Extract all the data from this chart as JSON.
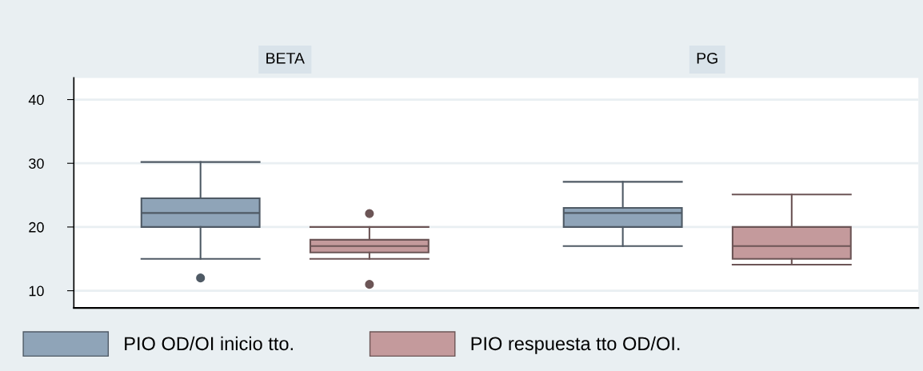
{
  "chart_data": {
    "type": "box",
    "categories": [
      "BETA",
      "PG"
    ],
    "ylim": [
      7.3,
      43.4
    ],
    "yticks": [
      10,
      20,
      30,
      40
    ],
    "grid": "y",
    "legend": "bottom",
    "series": [
      {
        "name": "PIO OD/OI inicio tto.",
        "color": "#8fa4b8",
        "boxes": [
          {
            "low": 15,
            "q1": 20,
            "median": 22.2,
            "q3": 24.5,
            "high": 30.2,
            "outliers": [
              12
            ]
          },
          {
            "low": 17,
            "q1": 20,
            "median": 22.2,
            "q3": 23,
            "high": 27.1
          }
        ]
      },
      {
        "name": "PIO respuesta tto OD/OI.",
        "color": "#c49a9c",
        "boxes": [
          {
            "low": 15,
            "q1": 16,
            "median": 17,
            "q3": 18,
            "high": 20,
            "outliers": [
              22.1,
              11
            ]
          },
          {
            "low": 14.1,
            "q1": 15,
            "median": 17,
            "q3": 20,
            "high": 25.1
          }
        ]
      }
    ]
  }
}
